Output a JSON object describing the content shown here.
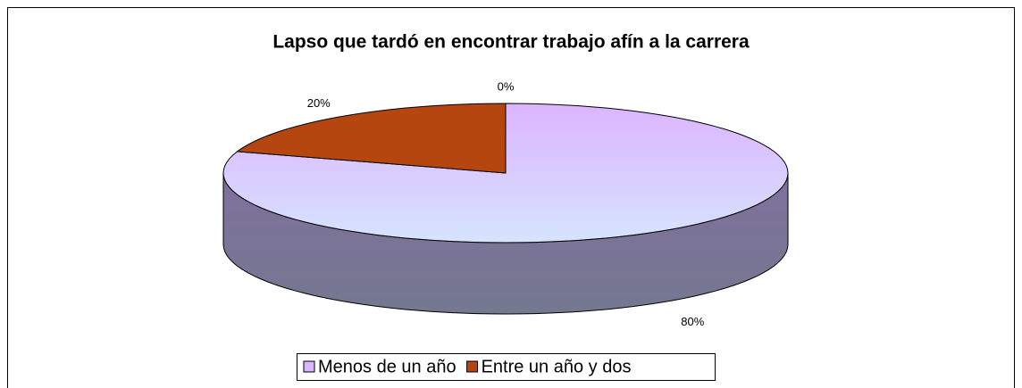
{
  "chart_data": {
    "type": "pie3d",
    "title": "Lapso que tardó en encontrar trabajo afín a la carrera",
    "categories": [
      "Menos de un año",
      "Entre un año y dos",
      null
    ],
    "values": [
      80,
      20,
      0
    ],
    "value_labels": [
      "80%",
      "20%",
      "0%"
    ],
    "colors": [
      "#dcb4ff",
      "#b5460f",
      "#9aa8d8"
    ],
    "legend": "bottom"
  }
}
